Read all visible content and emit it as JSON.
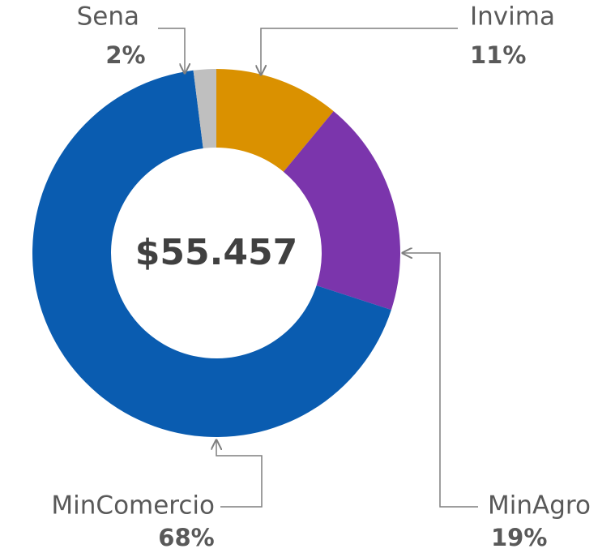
{
  "chart_data": {
    "type": "donut",
    "center_label": "$55.457",
    "categories": [
      "Invima",
      "MinAgro",
      "MinComercio",
      "Sena"
    ],
    "values": [
      11,
      19,
      68,
      2
    ],
    "value_labels": [
      "11%",
      "19%",
      "68%",
      "2%"
    ],
    "colors": [
      "#DA9100",
      "#7B35AC",
      "#0A5CB0",
      "#BFBFBF"
    ]
  }
}
